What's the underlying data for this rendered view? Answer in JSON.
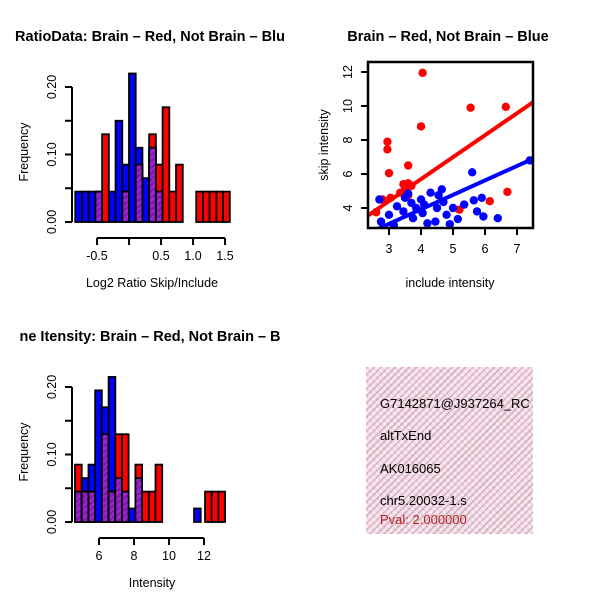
{
  "colors": {
    "red": "#ff0000",
    "blue": "#0000ff",
    "overlap_base": "#a322dd",
    "overlap_stripe": "#7d1bab",
    "axis": "#000000",
    "pval_color": "#b22222",
    "info_bg": "#f8d7ee"
  },
  "chart_data": [
    {
      "type": "bar",
      "id": "hist_ratio",
      "title": "RatioData: Brain – Red, Not Brain – Blu",
      "xlabel": "Log2 Ratio Skip/Include",
      "ylabel": "Frequency",
      "xlim": [
        -0.9,
        1.62
      ],
      "ylim": [
        0,
        0.225
      ],
      "grid": false,
      "bin_width": 0.105,
      "xticks": [
        {
          "v": -0.5,
          "label": "-0.5"
        },
        {
          "v": 0.0,
          "label": ""
        },
        {
          "v": 0.5,
          "label": "0.5"
        },
        {
          "v": 1.0,
          "label": "1.0"
        },
        {
          "v": 1.5,
          "label": "1.5"
        }
      ],
      "yticks": [
        {
          "v": 0.0,
          "label": "0.00"
        },
        {
          "v": 0.05,
          "label": ""
        },
        {
          "v": 0.1,
          "label": "0.10"
        },
        {
          "v": 0.15,
          "label": ""
        },
        {
          "v": 0.2,
          "label": "0.20"
        }
      ],
      "bars": [
        {
          "x": -0.84,
          "blue": 0.045
        },
        {
          "x": -0.735,
          "blue": 0.045
        },
        {
          "x": -0.63,
          "blue": 0.045
        },
        {
          "x": -0.525,
          "blue": 0.045,
          "red": 0.045,
          "overlap": 0.045
        },
        {
          "x": -0.42,
          "red": 0.13
        },
        {
          "x": -0.315,
          "blue": 0.045
        },
        {
          "x": -0.21,
          "blue": 0.15
        },
        {
          "x": -0.105,
          "blue": 0.085,
          "red": 0.045,
          "overlap": 0.045
        },
        {
          "x": 0.0,
          "blue": 0.22
        },
        {
          "x": 0.105,
          "blue": 0.11,
          "red": 0.085,
          "overlap": 0.085
        },
        {
          "x": 0.21,
          "blue": 0.065
        },
        {
          "x": 0.315,
          "red": 0.13,
          "blue": 0.11,
          "overlap": 0.11
        },
        {
          "x": 0.42,
          "red": 0.085,
          "blue": 0.045,
          "overlap": 0.045
        },
        {
          "x": 0.525,
          "red": 0.17
        },
        {
          "x": 0.63,
          "red": 0.045
        },
        {
          "x": 0.735,
          "red": 0.085
        },
        {
          "x": 1.05,
          "red": 0.045
        },
        {
          "x": 1.155,
          "red": 0.045
        },
        {
          "x": 1.26,
          "red": 0.045
        },
        {
          "x": 1.365,
          "red": 0.045
        },
        {
          "x": 1.47,
          "red": 0.045
        }
      ]
    },
    {
      "type": "scatter",
      "id": "scatter_intensity",
      "title": "Brain – Red, Not Brain – Blue",
      "xlabel": "include intensity",
      "ylabel": "skip intensity",
      "xlim": [
        2.3,
        7.6
      ],
      "ylim": [
        2.6,
        12.7
      ],
      "grid": false,
      "xticks": [
        {
          "v": 3,
          "label": "3"
        },
        {
          "v": 4,
          "label": "4"
        },
        {
          "v": 5,
          "label": "5"
        },
        {
          "v": 6,
          "label": "6"
        },
        {
          "v": 7,
          "label": "7"
        }
      ],
      "yticks": [
        {
          "v": 4,
          "label": "4"
        },
        {
          "v": 6,
          "label": "6"
        },
        {
          "v": 8,
          "label": "8"
        },
        {
          "v": 10,
          "label": "10"
        },
        {
          "v": 12,
          "label": "12"
        }
      ],
      "series": [
        {
          "name": "Brain",
          "color": "#ff0000",
          "points": [
            [
              4.05,
              11.95
            ],
            [
              5.55,
              9.9
            ],
            [
              6.65,
              9.95
            ],
            [
              4.0,
              8.8
            ],
            [
              2.95,
              7.9
            ],
            [
              2.95,
              7.45
            ],
            [
              3.6,
              6.5
            ],
            [
              3.0,
              6.05
            ],
            [
              3.45,
              5.4
            ],
            [
              3.6,
              5.45
            ],
            [
              3.7,
              5.3
            ],
            [
              3.5,
              5.15
            ],
            [
              3.35,
              4.9
            ],
            [
              3.6,
              4.75
            ],
            [
              3.05,
              4.6
            ],
            [
              2.8,
              4.5
            ],
            [
              2.6,
              3.75
            ],
            [
              5.2,
              3.9
            ],
            [
              6.15,
              4.4
            ],
            [
              6.7,
              4.95
            ]
          ]
        },
        {
          "name": "Not Brain",
          "color": "#0000ff",
          "points": [
            [
              2.7,
              4.5
            ],
            [
              2.75,
              3.2
            ],
            [
              3.0,
              3.6
            ],
            [
              3.15,
              3.0
            ],
            [
              3.25,
              4.1
            ],
            [
              3.45,
              3.8
            ],
            [
              3.5,
              4.6
            ],
            [
              3.6,
              4.85
            ],
            [
              3.7,
              4.3
            ],
            [
              3.75,
              3.4
            ],
            [
              3.85,
              4.0
            ],
            [
              4.0,
              4.5
            ],
            [
              4.05,
              3.7
            ],
            [
              4.2,
              3.1
            ],
            [
              4.1,
              4.2
            ],
            [
              4.3,
              4.9
            ],
            [
              4.45,
              3.2
            ],
            [
              4.5,
              4.0
            ],
            [
              4.55,
              4.75
            ],
            [
              4.65,
              5.1
            ],
            [
              4.7,
              4.35
            ],
            [
              4.8,
              3.6
            ],
            [
              4.9,
              3.05
            ],
            [
              5.0,
              4.0
            ],
            [
              5.15,
              3.35
            ],
            [
              5.35,
              4.2
            ],
            [
              5.6,
              6.1
            ],
            [
              5.65,
              4.45
            ],
            [
              5.75,
              3.8
            ],
            [
              5.9,
              4.6
            ],
            [
              5.95,
              3.5
            ],
            [
              6.4,
              3.4
            ],
            [
              7.4,
              6.8
            ]
          ]
        }
      ],
      "lines": [
        {
          "name": "brain-fit",
          "color": "#ff0000",
          "x1": 2.3,
          "y1": 3.5,
          "x2": 7.6,
          "y2": 10.35
        },
        {
          "name": "not-brain-fit",
          "color": "#0000ff",
          "x1": 2.45,
          "y1": 2.6,
          "x2": 7.5,
          "y2": 6.9
        }
      ]
    },
    {
      "type": "bar",
      "id": "hist_intensity",
      "title": "ne Itensity: Brain – Red, Not Brain – B",
      "xlabel": "Intensity",
      "ylabel": "Frequency",
      "xlim": [
        4.45,
        13.6
      ],
      "ylim": [
        0,
        0.225
      ],
      "grid": false,
      "bin_width": 0.383,
      "xticks": [
        {
          "v": 6,
          "label": "6"
        },
        {
          "v": 8,
          "label": "8"
        },
        {
          "v": 10,
          "label": "10"
        },
        {
          "v": 12,
          "label": "12"
        }
      ],
      "yticks": [
        {
          "v": 0.0,
          "label": "0.00"
        },
        {
          "v": 0.05,
          "label": ""
        },
        {
          "v": 0.1,
          "label": "0.10"
        },
        {
          "v": 0.15,
          "label": ""
        },
        {
          "v": 0.2,
          "label": "0.20"
        }
      ],
      "bars": [
        {
          "x": 4.63,
          "red": 0.085,
          "blue": 0.045,
          "overlap": 0.045
        },
        {
          "x": 5.01,
          "blue": 0.065,
          "red": 0.045,
          "overlap": 0.045
        },
        {
          "x": 5.4,
          "blue": 0.085,
          "red": 0.045,
          "overlap": 0.045
        },
        {
          "x": 5.78,
          "blue": 0.195
        },
        {
          "x": 6.16,
          "blue": 0.17,
          "red": 0.13,
          "overlap": 0.13
        },
        {
          "x": 6.55,
          "blue": 0.215,
          "red": 0.045,
          "overlap": 0.045
        },
        {
          "x": 6.93,
          "red": 0.13,
          "blue": 0.065,
          "overlap": 0.065
        },
        {
          "x": 7.31,
          "red": 0.13,
          "blue": 0.045,
          "overlap": 0.045
        },
        {
          "x": 7.7,
          "blue": 0.02
        },
        {
          "x": 8.08,
          "red": 0.085,
          "blue": 0.065,
          "overlap": 0.065
        },
        {
          "x": 8.46,
          "red": 0.045
        },
        {
          "x": 8.85,
          "red": 0.045
        },
        {
          "x": 9.23,
          "red": 0.085
        },
        {
          "x": 11.43,
          "blue": 0.02
        },
        {
          "x": 12.06,
          "red": 0.045
        },
        {
          "x": 12.44,
          "red": 0.045
        },
        {
          "x": 12.82,
          "red": 0.045
        }
      ]
    }
  ],
  "info_box": {
    "lines": [
      "G7142871@J937264_RC",
      "altTxEnd",
      "AK016065",
      "chr5.20032-1.s"
    ],
    "pval": "Pval: 2.000000"
  }
}
